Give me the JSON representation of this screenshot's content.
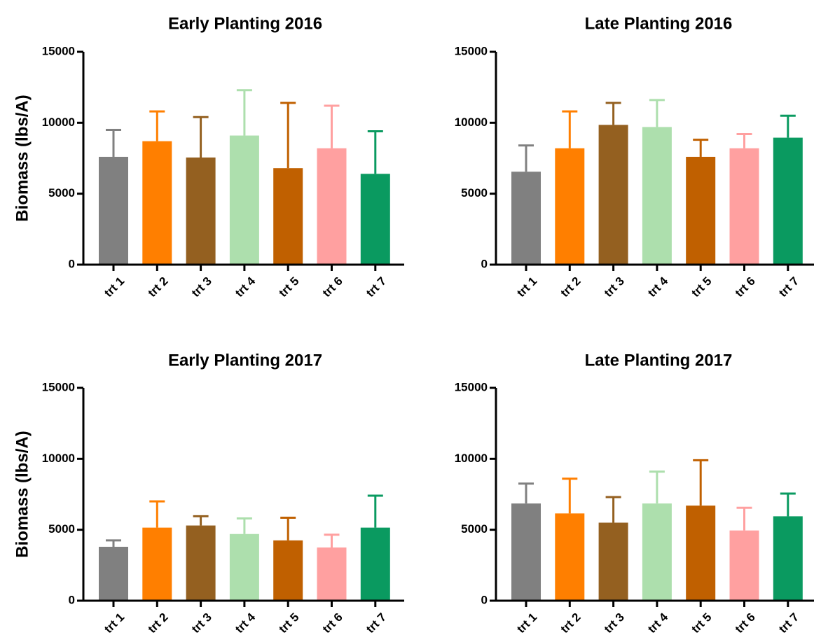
{
  "chart_data": [
    {
      "type": "bar",
      "title": "Early Planting 2016",
      "ylabel": "Biomass (lbs/A)",
      "xlabel": "",
      "ylim": [
        0,
        15000
      ],
      "yticks": [
        "0",
        "5000",
        "10000",
        "15000"
      ],
      "categories": [
        "trt 1",
        "trt 2",
        "trt 3",
        "trt 4",
        "trt 5",
        "trt 6",
        "trt 7"
      ],
      "values": [
        7600,
        8700,
        7550,
        9100,
        6800,
        8200,
        6400
      ],
      "error_upper": [
        9500,
        10800,
        10400,
        12300,
        11400,
        11200,
        9400
      ],
      "colors": [
        "#808080",
        "#ff7f00",
        "#946020",
        "#addfad",
        "#c06000",
        "#ffa0a0",
        "#0a9a60"
      ]
    },
    {
      "type": "bar",
      "title": "Late Planting 2016",
      "ylabel": "",
      "xlabel": "",
      "ylim": [
        0,
        15000
      ],
      "yticks": [
        "0",
        "5000",
        "10000",
        "15000"
      ],
      "categories": [
        "trt 1",
        "trt 2",
        "trt 3",
        "trt 4",
        "trt 5",
        "trt 6",
        "trt 7"
      ],
      "values": [
        6550,
        8200,
        9850,
        9700,
        7600,
        8200,
        8950
      ],
      "error_upper": [
        8400,
        10800,
        11400,
        11600,
        8800,
        9200,
        10500
      ],
      "colors": [
        "#808080",
        "#ff7f00",
        "#946020",
        "#addfad",
        "#c06000",
        "#ffa0a0",
        "#0a9a60"
      ]
    },
    {
      "type": "bar",
      "title": "Early Planting 2017",
      "ylabel": "Biomass (lbs/A)",
      "xlabel": "",
      "ylim": [
        0,
        15000
      ],
      "yticks": [
        "0",
        "5000",
        "10000",
        "15000"
      ],
      "categories": [
        "trt 1",
        "trt 2",
        "trt 3",
        "trt 4",
        "trt 5",
        "trt 6",
        "trt 7"
      ],
      "values": [
        3800,
        5150,
        5300,
        4700,
        4250,
        3750,
        5150
      ],
      "error_upper": [
        4250,
        7000,
        5950,
        5800,
        5850,
        4650,
        7400
      ],
      "colors": [
        "#808080",
        "#ff7f00",
        "#946020",
        "#addfad",
        "#c06000",
        "#ffa0a0",
        "#0a9a60"
      ]
    },
    {
      "type": "bar",
      "title": "Late Planting 2017",
      "ylabel": "",
      "xlabel": "",
      "ylim": [
        0,
        15000
      ],
      "yticks": [
        "0",
        "5000",
        "10000",
        "15000"
      ],
      "categories": [
        "trt 1",
        "trt 2",
        "trt 3",
        "trt 4",
        "trt 5",
        "trt 6",
        "trt 7"
      ],
      "values": [
        6850,
        6150,
        5500,
        6850,
        6700,
        4950,
        5950
      ],
      "error_upper": [
        8250,
        8600,
        7300,
        9100,
        9900,
        6550,
        7550
      ],
      "colors": [
        "#808080",
        "#ff7f00",
        "#946020",
        "#addfad",
        "#c06000",
        "#ffa0a0",
        "#0a9a60"
      ]
    }
  ]
}
